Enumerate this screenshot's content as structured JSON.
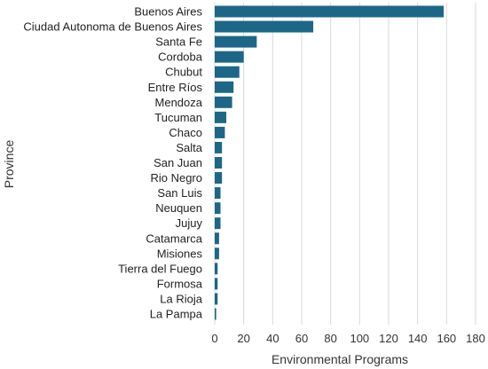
{
  "chart_data": {
    "type": "bar",
    "orientation": "horizontal",
    "categories": [
      "Buenos Aires",
      "Ciudad Autonoma de Buenos Aires",
      "Santa Fe",
      "Cordoba",
      "Chubut",
      "Entre Ríos",
      "Mendoza",
      "Tucuman",
      "Chaco",
      "Salta",
      "San Juan",
      "Rio Negro",
      "San Luis",
      "Neuquen",
      "Jujuy",
      "Catamarca",
      "Misiones",
      "Tierra del Fuego",
      "Formosa",
      "La Rioja",
      "La Pampa"
    ],
    "values": [
      158,
      68,
      29,
      20,
      17,
      13,
      12,
      8,
      7,
      5,
      5,
      5,
      4,
      4,
      4,
      3,
      3,
      2,
      2,
      2,
      1
    ],
    "xlabel": "Environmental Programs",
    "ylabel": "Province",
    "xlim": [
      0,
      180
    ],
    "xticks": [
      0,
      20,
      40,
      60,
      80,
      100,
      120,
      140,
      160,
      180
    ],
    "grid": "vertical",
    "bar_color": "#1c6787",
    "grid_color": "#d9d9d9"
  }
}
